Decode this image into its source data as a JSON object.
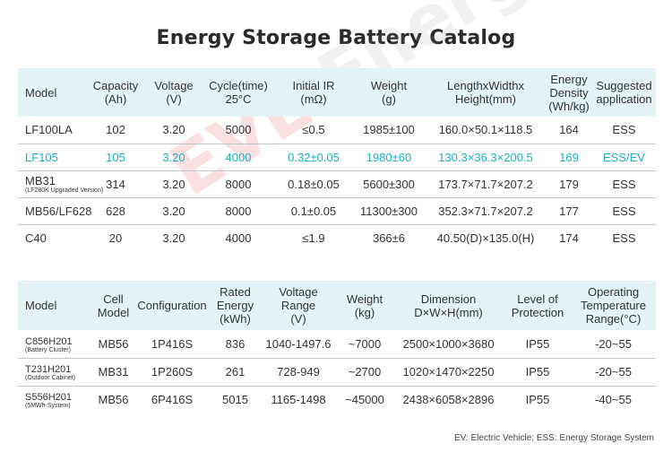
{
  "title": "Energy Storage Battery Catalog",
  "watermark": {
    "ev": "EVE",
    "energy": " Energy"
  },
  "colors": {
    "header_bg": "#e3f3f6",
    "highlight": "#19b0bf",
    "divider": "#bfc9cc"
  },
  "cell_table": {
    "headers": [
      [
        "Model"
      ],
      [
        "Capacity",
        "(Ah)"
      ],
      [
        "Voltage",
        "(V)"
      ],
      [
        "Cycle(time)",
        "25°C"
      ],
      [
        "Initial IR",
        "(mΩ)"
      ],
      [
        "Weight",
        "(g)"
      ],
      [
        "LengthxWidthx",
        "Height(mm)"
      ],
      [
        "Energy",
        "Density",
        "(Wh/kg)"
      ],
      [
        "Suggested",
        "application"
      ]
    ],
    "rows": [
      {
        "model": "LF100LA",
        "sub": "",
        "capacity": "102",
        "voltage": "3.20",
        "cycle": "5000",
        "ir": "≤0.5",
        "weight": "1985±100",
        "dims": "160.0×50.1×118.5",
        "density": "164",
        "app": "ESS"
      },
      {
        "model": "LF105",
        "sub": "",
        "capacity": "105",
        "voltage": "3.20",
        "cycle": "4000",
        "ir": "0.32±0.05",
        "weight": "1980±60",
        "dims": "130.3×36.3×200.5",
        "density": "169",
        "app": "ESS/EV"
      },
      {
        "model": "MB31",
        "sub": "(LF280K Upgraded Version)",
        "capacity": "314",
        "voltage": "3.20",
        "cycle": "8000",
        "ir": "0.18±0.05",
        "weight": "5600±300",
        "dims": "173.7×71.7×207.2",
        "density": "179",
        "app": "ESS"
      },
      {
        "model": "MB56/LF628",
        "sub": "",
        "capacity": "628",
        "voltage": "3.20",
        "cycle": "8000",
        "ir": "0.1±0.05",
        "weight": "11300±300",
        "dims": "352.3×71.7×207.2",
        "density": "177",
        "app": "ESS"
      },
      {
        "model": "C40",
        "sub": "",
        "capacity": "20",
        "voltage": "3.20",
        "cycle": "4000",
        "ir": "≤1.9",
        "weight": "366±6",
        "dims": "40.50(D)×135.0(H)",
        "density": "174",
        "app": "ESS"
      }
    ]
  },
  "system_table": {
    "headers": [
      [
        "Model"
      ],
      [
        "Cell",
        "Model"
      ],
      [
        "Configuration"
      ],
      [
        "Rated",
        "Energy",
        "(kWh)"
      ],
      [
        "Voltage",
        "Range",
        "(V)"
      ],
      [
        "Weight",
        "(kg)"
      ],
      [
        "Dimension",
        "D×W×H(mm)"
      ],
      [
        "Level of",
        "Protection"
      ],
      [
        "Operating",
        "Temperature",
        "Range(°C)"
      ]
    ],
    "rows": [
      {
        "model": "C856H201",
        "sub": "(Battery Cluster)",
        "cell": "MB56",
        "config": "1P416S",
        "energy": "836",
        "voltage": "1040-1497.6",
        "weight": "~7000",
        "dims": "2500×1000×3680",
        "ip": "IP55",
        "temp": "-20~55"
      },
      {
        "model": "T231H201",
        "sub": "(Outdoor Cabinet)",
        "cell": "MB31",
        "config": "1P260S",
        "energy": "261",
        "voltage": "728-949",
        "weight": "~2700",
        "dims": "1020×1470×2250",
        "ip": "IP55",
        "temp": "-20~55"
      },
      {
        "model": "S556H201",
        "sub": "(5MWh-System)",
        "cell": "MB56",
        "config": "6P416S",
        "energy": "5015",
        "voltage": "1165-1498",
        "weight": "~45000",
        "dims": "2438×6058×2896",
        "ip": "IP55",
        "temp": "-40~55"
      }
    ]
  },
  "footnote": "EV: Electric Vehicle;  ESS: Energy Storage System"
}
